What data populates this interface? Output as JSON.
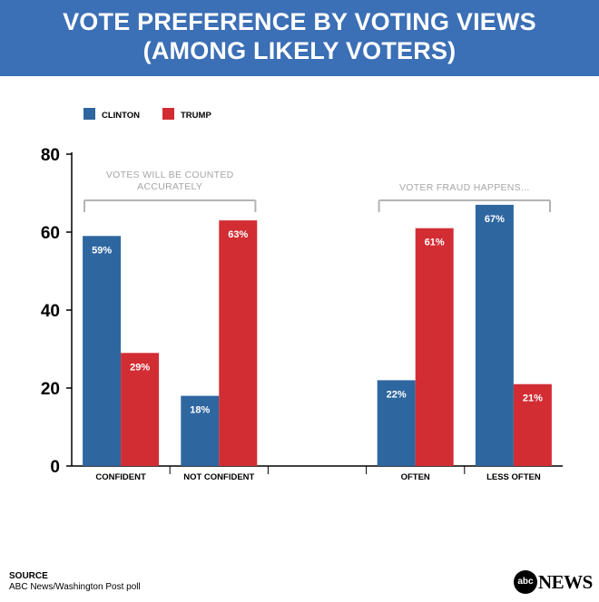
{
  "header": {
    "title_line1": "VOTE PREFERENCE BY VOTING VIEWS",
    "title_line2": "(AMONG LIKELY VOTERS)",
    "bg_color": "#3b6fb6"
  },
  "chart_data": {
    "type": "bar",
    "title": "VOTE PREFERENCE BY VOTING VIEWS (AMONG LIKELY VOTERS)",
    "ylim": [
      0,
      80
    ],
    "yticks": [
      0,
      20,
      40,
      60,
      80
    ],
    "grid": false,
    "legend_position": "top-left",
    "categories": [
      "CONFIDENT",
      "NOT CONFIDENT",
      "",
      "OFTEN",
      "LESS OFTEN"
    ],
    "series": [
      {
        "name": "CLINTON",
        "color": "#2e66a0",
        "values": [
          59,
          18,
          null,
          22,
          67
        ],
        "labels": [
          "59%",
          "18%",
          "",
          "22%",
          "67%"
        ]
      },
      {
        "name": "TRUMP",
        "color": "#d22d33",
        "values": [
          29,
          63,
          null,
          61,
          21
        ],
        "labels": [
          "29%",
          "63%",
          "",
          "61%",
          "21%"
        ]
      }
    ],
    "groups": [
      {
        "label_lines": [
          "VOTES WILL BE COUNTED",
          "ACCURATELY"
        ],
        "start_category": 0,
        "end_category": 1
      },
      {
        "label_lines": [
          "VOTER FRAUD HAPPENS..."
        ],
        "start_category": 3,
        "end_category": 4
      }
    ]
  },
  "footer": {
    "source_label": "SOURCE",
    "source_text": "ABC News/Washington Post poll",
    "logo_circle": "abc",
    "logo_text": "NEWS"
  }
}
